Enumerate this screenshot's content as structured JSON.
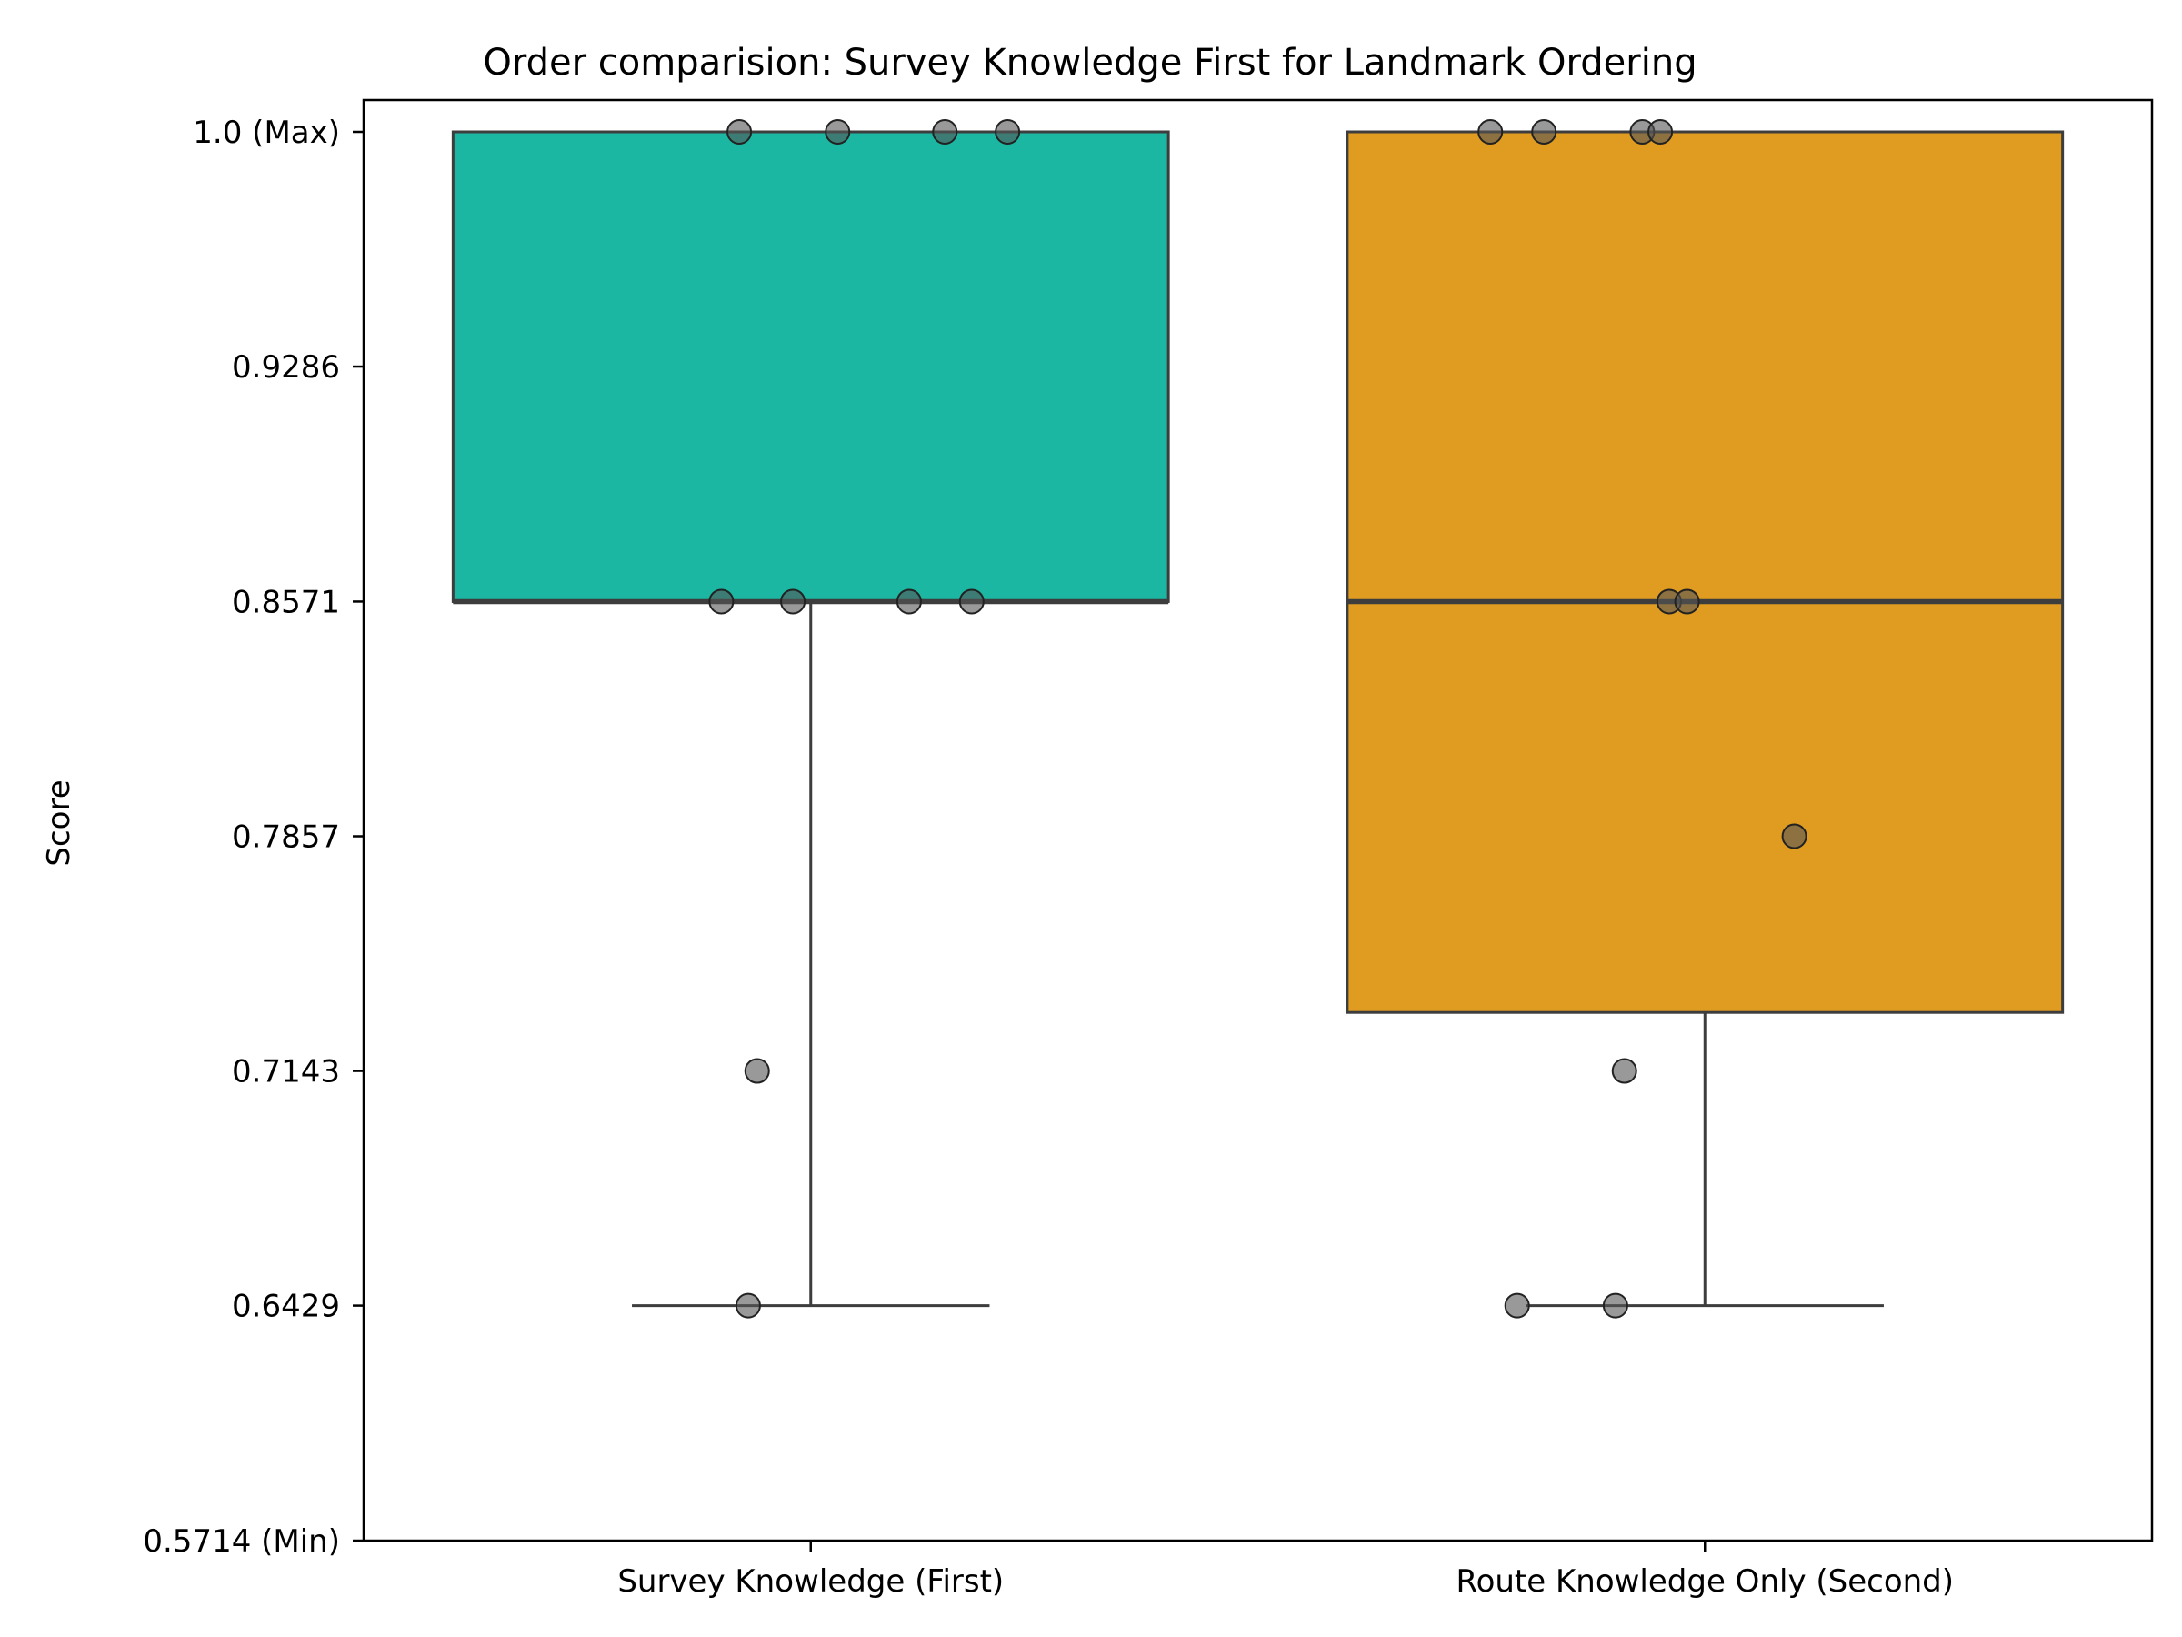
{
  "chart_data": {
    "type": "box",
    "title": "Order comparision: Survey Knowledge First for Landmark Ordering",
    "xlabel": "",
    "ylabel": "Score",
    "ylim": [
      0.5714,
      1.0
    ],
    "yticks": [
      {
        "value": 1.0,
        "label": "1.0 (Max)"
      },
      {
        "value": 0.9286,
        "label": "0.9286"
      },
      {
        "value": 0.8571,
        "label": "0.8571"
      },
      {
        "value": 0.7857,
        "label": "0.7857"
      },
      {
        "value": 0.7143,
        "label": "0.7143"
      },
      {
        "value": 0.6429,
        "label": "0.6429"
      },
      {
        "value": 0.5714,
        "label": "0.5714 (Min)"
      }
    ],
    "categories": [
      "Survey Knowledge (First)",
      "Route Knowledge Only (Second)"
    ],
    "boxes": [
      {
        "category": "Survey Knowledge (First)",
        "color": "#1bb7a2",
        "q1": 0.8571,
        "median": 0.8571,
        "q3": 1.0,
        "whisker_low": 0.6429,
        "whisker_high": 1.0
      },
      {
        "category": "Route Knowledge Only (Second)",
        "color": "#e09c21",
        "q1": 0.7321,
        "median": 0.8571,
        "q3": 1.0,
        "whisker_low": 0.6429,
        "whisker_high": 1.0
      }
    ],
    "points": [
      {
        "category": 0,
        "y": 1.0,
        "jitter": -0.08
      },
      {
        "category": 0,
        "y": 1.0,
        "jitter": 0.03
      },
      {
        "category": 0,
        "y": 1.0,
        "jitter": 0.15
      },
      {
        "category": 0,
        "y": 1.0,
        "jitter": 0.22
      },
      {
        "category": 0,
        "y": 0.8571,
        "jitter": -0.1
      },
      {
        "category": 0,
        "y": 0.8571,
        "jitter": -0.02
      },
      {
        "category": 0,
        "y": 0.8571,
        "jitter": 0.11
      },
      {
        "category": 0,
        "y": 0.8571,
        "jitter": 0.18
      },
      {
        "category": 0,
        "y": 0.7143,
        "jitter": -0.06
      },
      {
        "category": 0,
        "y": 0.6429,
        "jitter": -0.07
      },
      {
        "category": 1,
        "y": 1.0,
        "jitter": -0.24
      },
      {
        "category": 1,
        "y": 1.0,
        "jitter": -0.18
      },
      {
        "category": 1,
        "y": 1.0,
        "jitter": -0.07
      },
      {
        "category": 1,
        "y": 1.0,
        "jitter": -0.05
      },
      {
        "category": 1,
        "y": 0.8571,
        "jitter": -0.04
      },
      {
        "category": 1,
        "y": 0.8571,
        "jitter": -0.02
      },
      {
        "category": 1,
        "y": 0.7857,
        "jitter": 0.1
      },
      {
        "category": 1,
        "y": 0.7143,
        "jitter": -0.09
      },
      {
        "category": 1,
        "y": 0.6429,
        "jitter": -0.21
      },
      {
        "category": 1,
        "y": 0.6429,
        "jitter": -0.1
      }
    ],
    "point_color": "#555555",
    "grid": false,
    "legend": "none"
  }
}
